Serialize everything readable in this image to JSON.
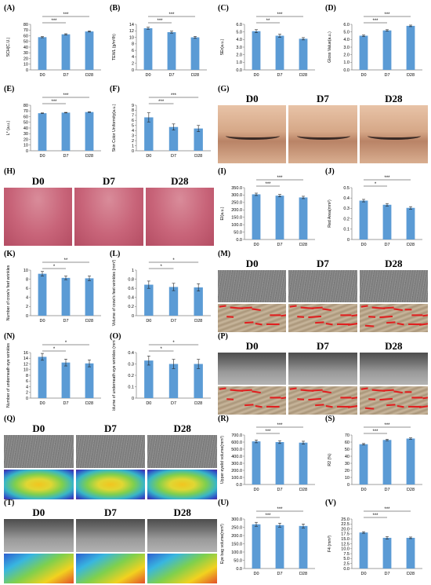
{
  "panels": [
    {
      "id": "A",
      "label": "(A)",
      "type": "bar",
      "ylabel": "SCH(C.U.)",
      "ylim": [
        0,
        80
      ],
      "yticks": [
        "0",
        "10",
        "20",
        "30",
        "40",
        "50",
        "60",
        "70",
        "80"
      ],
      "categories": [
        "D0",
        "D7",
        "D28"
      ],
      "values": [
        57.5,
        62.5,
        67.5
      ],
      "errors": [
        1,
        1,
        1
      ],
      "sig": [
        {
          "from": 0,
          "to": 1,
          "text": "***"
        },
        {
          "from": 0,
          "to": 2,
          "text": "***"
        }
      ]
    },
    {
      "id": "B",
      "label": "(B)",
      "type": "bar",
      "ylabel": "TEWL (g/m²/h)",
      "ylim": [
        0,
        14
      ],
      "yticks": [
        "0",
        "2",
        "4",
        "6",
        "8",
        "10",
        "12",
        "14"
      ],
      "categories": [
        "D0",
        "D7",
        "D28"
      ],
      "values": [
        12.8,
        11.6,
        10.0
      ],
      "errors": [
        0.3,
        0.3,
        0.3
      ],
      "sig": [
        {
          "from": 0,
          "to": 1,
          "text": "***"
        },
        {
          "from": 0,
          "to": 2,
          "text": "***"
        }
      ]
    },
    {
      "id": "C",
      "label": "(C)",
      "type": "bar",
      "ylabel": "SEr(a.u.)",
      "ylim": [
        0,
        6
      ],
      "yticks": [
        "0.0",
        "1.0",
        "2.0",
        "3.0",
        "4.0",
        "5.0",
        "6.0"
      ],
      "categories": [
        "D0",
        "D7",
        "D28"
      ],
      "values": [
        5.1,
        4.5,
        4.1
      ],
      "errors": [
        0.2,
        0.2,
        0.15
      ],
      "sig": [
        {
          "from": 0,
          "to": 1,
          "text": "**"
        },
        {
          "from": 0,
          "to": 2,
          "text": "***"
        }
      ]
    },
    {
      "id": "D",
      "label": "(D)",
      "type": "bar",
      "ylabel": "Gloss Value(a.u.)",
      "ylim": [
        0,
        6
      ],
      "yticks": [
        "0.0",
        "1.0",
        "2.0",
        "3.0",
        "4.0",
        "5.0",
        "6.0"
      ],
      "categories": [
        "D0",
        "D7",
        "D28"
      ],
      "values": [
        4.5,
        5.2,
        5.8
      ],
      "errors": [
        0.1,
        0.1,
        0.1
      ],
      "sig": [
        {
          "from": 0,
          "to": 1,
          "text": "***"
        },
        {
          "from": 0,
          "to": 2,
          "text": "***"
        }
      ]
    },
    {
      "id": "E",
      "label": "(E)",
      "type": "bar",
      "ylabel": "L* (a.u.)",
      "ylim": [
        0,
        80
      ],
      "yticks": [
        "0",
        "10",
        "20",
        "30",
        "40",
        "50",
        "60",
        "70",
        "80"
      ],
      "categories": [
        "D0",
        "D7",
        "D28"
      ],
      "values": [
        66,
        67,
        68
      ],
      "errors": [
        0.5,
        0.5,
        0.5
      ],
      "sig": [
        {
          "from": 0,
          "to": 1,
          "text": "***"
        },
        {
          "from": 0,
          "to": 2,
          "text": "***"
        }
      ]
    },
    {
      "id": "F",
      "label": "(F)",
      "type": "bar",
      "ylabel": "Skin Color Uniformity(a.u.)",
      "ylim": [
        0,
        9
      ],
      "yticks": [
        "0",
        "1",
        "2",
        "3",
        "4",
        "5",
        "6",
        "7",
        "8",
        "9"
      ],
      "categories": [
        "D0",
        "D7",
        "D28"
      ],
      "values": [
        6.6,
        4.7,
        4.4
      ],
      "errors": [
        0.9,
        0.6,
        0.6
      ],
      "sig": [
        {
          "from": 0,
          "to": 1,
          "text": "***"
        },
        {
          "from": 0,
          "to": 2,
          "text": "***"
        }
      ]
    },
    {
      "id": "I",
      "label": "(I)",
      "type": "bar",
      "ylabel": "EI(a.u.)",
      "ylim": [
        0,
        350
      ],
      "yticks": [
        "0.0",
        "50.0",
        "100.0",
        "150.0",
        "200.0",
        "250.0",
        "300.0",
        "350.0"
      ],
      "categories": [
        "D0",
        "D7",
        "D28"
      ],
      "values": [
        305,
        296,
        284
      ],
      "errors": [
        8,
        8,
        8
      ],
      "sig": [
        {
          "from": 0,
          "to": 1,
          "text": "***"
        },
        {
          "from": 0,
          "to": 2,
          "text": "***"
        }
      ]
    },
    {
      "id": "J",
      "label": "(J)",
      "type": "bar",
      "ylabel": "Red Area(mm²)",
      "ylim": [
        0,
        0.5
      ],
      "yticks": [
        "0",
        "0.1",
        "0.2",
        "0.3",
        "0.4",
        "0.5"
      ],
      "categories": [
        "D0",
        "D7",
        "D28"
      ],
      "values": [
        0.375,
        0.335,
        0.305
      ],
      "errors": [
        0.012,
        0.012,
        0.012
      ],
      "sig": [
        {
          "from": 0,
          "to": 1,
          "text": "*"
        },
        {
          "from": 0,
          "to": 2,
          "text": "***"
        }
      ]
    },
    {
      "id": "K",
      "label": "(K)",
      "type": "bar",
      "ylabel": "Number of crow's feet wrinkles",
      "ylim": [
        0,
        10
      ],
      "yticks": [
        "0",
        "2",
        "4",
        "6",
        "8",
        "10"
      ],
      "categories": [
        "D0",
        "D7",
        "D28"
      ],
      "values": [
        9.2,
        8.3,
        8.2
      ],
      "errors": [
        0.5,
        0.4,
        0.5
      ],
      "sig": [
        {
          "from": 0,
          "to": 1,
          "text": "*"
        },
        {
          "from": 0,
          "to": 2,
          "text": "**"
        }
      ]
    },
    {
      "id": "L",
      "label": "(L)",
      "type": "bar",
      "ylabel": "Volume of crow's feet wrinkles (mm³)",
      "ylim": [
        0,
        1
      ],
      "yticks": [
        "0",
        "0.2",
        "0.4",
        "0.6",
        "0.8",
        "1"
      ],
      "categories": [
        "D0",
        "D7",
        "D28"
      ],
      "values": [
        0.68,
        0.63,
        0.62
      ],
      "errors": [
        0.08,
        0.08,
        0.08
      ],
      "sig": [
        {
          "from": 0,
          "to": 1,
          "text": "*"
        },
        {
          "from": 0,
          "to": 2,
          "text": "*"
        }
      ]
    },
    {
      "id": "N",
      "label": "(N)",
      "type": "bar",
      "ylabel": "Number of underneath eye wrinkles",
      "ylim": [
        0,
        16
      ],
      "yticks": [
        "0",
        "2",
        "4",
        "6",
        "8",
        "10",
        "12",
        "14",
        "16"
      ],
      "categories": [
        "D0",
        "D7",
        "D28"
      ],
      "values": [
        14.5,
        12.5,
        12.2
      ],
      "errors": [
        1.2,
        1.2,
        1.2
      ],
      "sig": [
        {
          "from": 0,
          "to": 1,
          "text": "*"
        },
        {
          "from": 0,
          "to": 2,
          "text": "*"
        }
      ]
    },
    {
      "id": "O",
      "label": "(O)",
      "type": "bar",
      "ylabel": "Volume of underneath eye wrinkles (mm³)",
      "ylim": [
        0,
        0.4
      ],
      "yticks": [
        "0",
        "0.1",
        "0.2",
        "0.3",
        "0.4"
      ],
      "categories": [
        "D0",
        "D7",
        "D28"
      ],
      "values": [
        0.33,
        0.3,
        0.3
      ],
      "errors": [
        0.04,
        0.04,
        0.04
      ],
      "sig": [
        {
          "from": 0,
          "to": 1,
          "text": "*"
        },
        {
          "from": 0,
          "to": 2,
          "text": "*"
        }
      ]
    },
    {
      "id": "R",
      "label": "(R)",
      "type": "bar",
      "ylabel": "Upper eyelid volume(mm³)",
      "ylim": [
        0,
        700
      ],
      "yticks": [
        "0.0",
        "100.0",
        "200.0",
        "300.0",
        "400.0",
        "500.0",
        "600.0",
        "700.0"
      ],
      "categories": [
        "D0",
        "D7",
        "D28"
      ],
      "values": [
        610,
        600,
        592
      ],
      "errors": [
        20,
        20,
        20
      ],
      "sig": [
        {
          "from": 0,
          "to": 1,
          "text": "***"
        },
        {
          "from": 0,
          "to": 2,
          "text": "***"
        }
      ]
    },
    {
      "id": "S",
      "label": "(S)",
      "type": "bar",
      "ylabel": "R2 (%)",
      "ylim": [
        0,
        70
      ],
      "yticks": [
        "0",
        "10",
        "20",
        "30",
        "40",
        "50",
        "60",
        "70"
      ],
      "categories": [
        "D0",
        "D7",
        "D28"
      ],
      "values": [
        57,
        63,
        65
      ],
      "errors": [
        1,
        1,
        1
      ],
      "sig": [
        {
          "from": 0,
          "to": 1,
          "text": "***"
        },
        {
          "from": 0,
          "to": 2,
          "text": "***"
        }
      ]
    },
    {
      "id": "U",
      "label": "(U)",
      "type": "bar",
      "ylabel": "Eye bag volume(mm³)",
      "ylim": [
        0,
        300
      ],
      "yticks": [
        "0.0",
        "50.0",
        "100.0",
        "150.0",
        "200.0",
        "250.0",
        "300.0"
      ],
      "categories": [
        "D0",
        "D7",
        "D28"
      ],
      "values": [
        268,
        263,
        258
      ],
      "errors": [
        12,
        12,
        12
      ],
      "sig": [
        {
          "from": 0,
          "to": 1,
          "text": "***"
        },
        {
          "from": 0,
          "to": 2,
          "text": "***"
        }
      ]
    },
    {
      "id": "V",
      "label": "(V)",
      "type": "bar",
      "ylabel": "F4 (mm³)",
      "ylim": [
        0,
        25
      ],
      "yticks": [
        "0.0",
        "2.5",
        "5.0",
        "7.5",
        "10.0",
        "12.5",
        "15.0",
        "17.5",
        "20.0",
        "22.5",
        "25.0"
      ],
      "categories": [
        "D0",
        "D7",
        "D28"
      ],
      "values": [
        18.2,
        15.5,
        15.5
      ],
      "errors": [
        0.4,
        0.6,
        0.4
      ],
      "sig": [
        {
          "from": 0,
          "to": 1,
          "text": "***"
        },
        {
          "from": 0,
          "to": 2,
          "text": "***"
        }
      ]
    }
  ],
  "photo_panels": [
    {
      "id": "G",
      "label": "(G)",
      "titles": [
        "D0",
        "D7",
        "D28"
      ],
      "style": "eye"
    },
    {
      "id": "H",
      "label": "(H)",
      "titles": [
        "D0",
        "D7",
        "D28"
      ],
      "style": "lash"
    },
    {
      "id": "M",
      "label": "(M)",
      "titles": [
        "D0",
        "D7",
        "D28"
      ],
      "style": "gray",
      "sub": "redmap"
    },
    {
      "id": "P",
      "label": "(P)",
      "titles": [
        "D0",
        "D7",
        "D28"
      ],
      "style": "grayeye",
      "sub": "redmap"
    },
    {
      "id": "Q",
      "label": "(Q)",
      "titles": [
        "D0",
        "D7",
        "D28"
      ],
      "style": "gray",
      "sub": "rainbow"
    },
    {
      "id": "T",
      "label": "(T)",
      "titles": [
        "D0",
        "D7",
        "D28"
      ],
      "style": "grayeye",
      "sub": "rainbow2"
    }
  ],
  "colors": {
    "bar": "#5b9bd5",
    "axis": "#7f7f7f",
    "text": "#000000",
    "red": "#e02020"
  }
}
